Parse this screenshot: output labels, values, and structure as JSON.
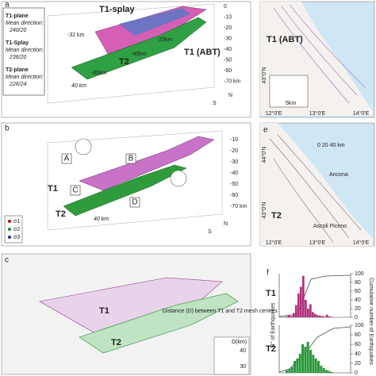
{
  "panel_a": {
    "label": "a",
    "t1_splay": "T1-splay",
    "t1": "T1 (ABT)",
    "t2": "T2",
    "depth_labels": [
      "-32 km",
      "-25km",
      "-40km",
      "-60km"
    ],
    "depth_ticks": [
      "0",
      "-10",
      "-20",
      "-30",
      "-40",
      "-50",
      "-60",
      "-70 km"
    ],
    "scale": "40 km",
    "legend": [
      {
        "name": "T1-plane",
        "caption": "Mean direction:",
        "value": "240/20"
      },
      {
        "name": "T1-Splay",
        "caption": "Mean direction:",
        "value": "236/20"
      },
      {
        "name": "T2-plane",
        "caption": "Mean direction:",
        "value": "226/24"
      }
    ],
    "compass": [
      "S",
      "N"
    ]
  },
  "panel_b": {
    "label": "b",
    "boxes": [
      "A",
      "B",
      "C",
      "D"
    ],
    "t1": "T1",
    "t2": "T2",
    "scale": "40 km",
    "depth_ticks": [
      "-10",
      "-20",
      "-30",
      "-40",
      "-50",
      "-60",
      "-70 km"
    ],
    "legend": [
      "σ1",
      "σ2",
      "σ3"
    ],
    "compass": [
      "S",
      "N"
    ]
  },
  "panel_c": {
    "label": "c",
    "t1": "T1",
    "t2": "T2",
    "note": "Distance (D) between T1 and T2 mesh centres",
    "inset_title": "D(km)",
    "inset_ticks": [
      "40",
      "30"
    ]
  },
  "panel_d": {
    "t1": "T1 (ABT)",
    "lat": "43°0'N",
    "lon": [
      "12°0'E",
      "13°0'E",
      "14°0'E"
    ],
    "scale": "5km"
  },
  "panel_e": {
    "label": "e",
    "lat": [
      "44°0'N",
      "43°0'N"
    ],
    "lon": [
      "12°0'E",
      "13°0'E",
      "14°0'E"
    ],
    "scale": "0  20  40 km",
    "t2": "T2",
    "towns": [
      "Ancona",
      "Ascoli Piceno"
    ]
  },
  "panel_f": {
    "label": "f",
    "t1": "T1",
    "t2": "T2",
    "y_label": "N° of Earthquakes",
    "y2_label": "Cumulative number of Earthquakes",
    "yticks": [
      0,
      20,
      40,
      60,
      80,
      100
    ],
    "t1_counts": [
      2,
      5,
      3,
      10,
      28,
      55,
      70,
      95,
      40,
      20,
      30,
      12,
      8,
      5,
      4,
      3,
      2,
      6,
      2,
      1
    ],
    "t2_counts": [
      5,
      8,
      12,
      25,
      30,
      40,
      60,
      55,
      65,
      48,
      38,
      30,
      25,
      15,
      10,
      6,
      4,
      2
    ]
  }
}
